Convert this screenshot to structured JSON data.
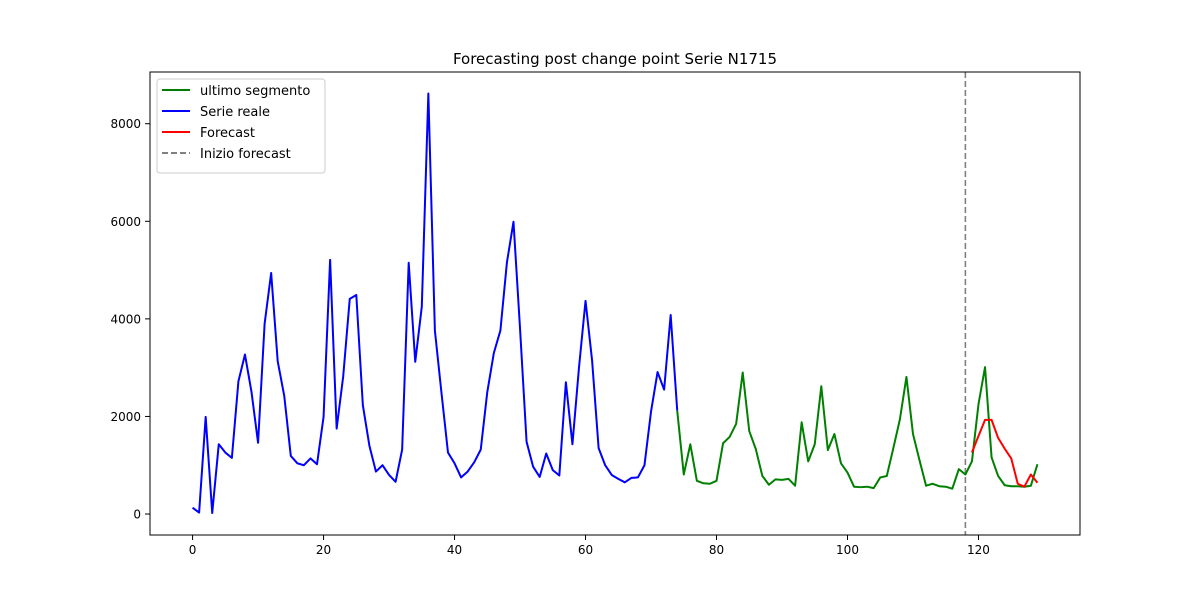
{
  "chart_data": {
    "type": "line",
    "title": "Forecasting post change point Serie N1715",
    "xlabel": "",
    "ylabel": "",
    "xlim": [
      -6.5,
      135.5
    ],
    "ylim": [
      -430,
      9060
    ],
    "xticks": [
      0,
      20,
      40,
      60,
      80,
      100,
      120
    ],
    "yticks": [
      0,
      2000,
      4000,
      6000,
      8000
    ],
    "grid": false,
    "legend_position": "upper-left",
    "series": [
      {
        "name": "ultimo segmento",
        "color": "#008000",
        "style": "solid",
        "x": [
          74,
          75,
          76,
          77,
          78,
          79,
          80,
          81,
          82,
          83,
          84,
          85,
          86,
          87,
          88,
          89,
          90,
          91,
          92,
          93,
          94,
          95,
          96,
          97,
          98,
          99,
          100,
          101,
          102,
          103,
          104,
          105,
          106,
          107,
          108,
          109,
          110,
          111,
          112,
          113,
          114,
          115,
          116,
          117,
          118,
          119,
          120,
          121,
          122,
          123,
          124,
          125,
          126,
          127,
          128,
          129
        ],
        "values": [
          2120,
          810,
          1430,
          680,
          630,
          620,
          680,
          1450,
          1580,
          1850,
          2900,
          1700,
          1330,
          780,
          600,
          710,
          700,
          720,
          580,
          1880,
          1080,
          1430,
          2620,
          1310,
          1640,
          1040,
          850,
          560,
          550,
          560,
          530,
          750,
          780,
          1350,
          1940,
          2810,
          1640,
          1100,
          580,
          620,
          570,
          560,
          520,
          920,
          810,
          1080,
          2250,
          3010,
          1160,
          780,
          590,
          570,
          570,
          560,
          580,
          1020
        ]
      },
      {
        "name": "Serie reale",
        "color": "#0000ff",
        "style": "solid",
        "x": [
          0,
          1,
          2,
          3,
          4,
          5,
          6,
          7,
          8,
          9,
          10,
          11,
          12,
          13,
          14,
          15,
          16,
          17,
          18,
          19,
          20,
          21,
          22,
          23,
          24,
          25,
          26,
          27,
          28,
          29,
          30,
          31,
          32,
          33,
          34,
          35,
          36,
          37,
          38,
          39,
          40,
          41,
          42,
          43,
          44,
          45,
          46,
          47,
          48,
          49,
          50,
          51,
          52,
          53,
          54,
          55,
          56,
          57,
          58,
          59,
          60,
          61,
          62,
          63,
          64,
          65,
          66,
          67,
          68,
          69,
          70,
          71,
          72,
          73,
          74
        ],
        "values": [
          130,
          30,
          1990,
          20,
          1430,
          1260,
          1150,
          2720,
          3270,
          2500,
          1460,
          3900,
          4940,
          3130,
          2420,
          1190,
          1040,
          1000,
          1140,
          1020,
          1990,
          5210,
          1750,
          2820,
          4410,
          4490,
          2230,
          1400,
          870,
          1000,
          800,
          660,
          1320,
          5150,
          3120,
          4250,
          8620,
          3760,
          2490,
          1260,
          1040,
          750,
          870,
          1060,
          1320,
          2500,
          3300,
          3760,
          5160,
          5990,
          3800,
          1480,
          970,
          760,
          1240,
          900,
          790,
          2700,
          1430,
          3000,
          4370,
          3150,
          1350,
          1000,
          800,
          720,
          650,
          740,
          750,
          1000,
          2100,
          2910,
          2550,
          4080,
          2120
        ]
      },
      {
        "name": "Forecast",
        "color": "#ff0000",
        "style": "solid",
        "x": [
          119,
          120,
          121,
          122,
          123,
          124,
          125,
          126,
          127,
          128,
          129
        ],
        "values": [
          1260,
          1600,
          1930,
          1930,
          1560,
          1340,
          1140,
          620,
          560,
          810,
          640
        ]
      }
    ],
    "vlines": [
      {
        "name": "Inizio forecast",
        "x": 118,
        "color": "#808080",
        "style": "dashed"
      }
    ],
    "legend": [
      {
        "label": "ultimo segmento",
        "color": "#008000",
        "style": "solid"
      },
      {
        "label": "Serie reale",
        "color": "#0000ff",
        "style": "solid"
      },
      {
        "label": "Forecast",
        "color": "#ff0000",
        "style": "solid"
      },
      {
        "label": "Inizio forecast",
        "color": "#808080",
        "style": "dashed"
      }
    ]
  }
}
